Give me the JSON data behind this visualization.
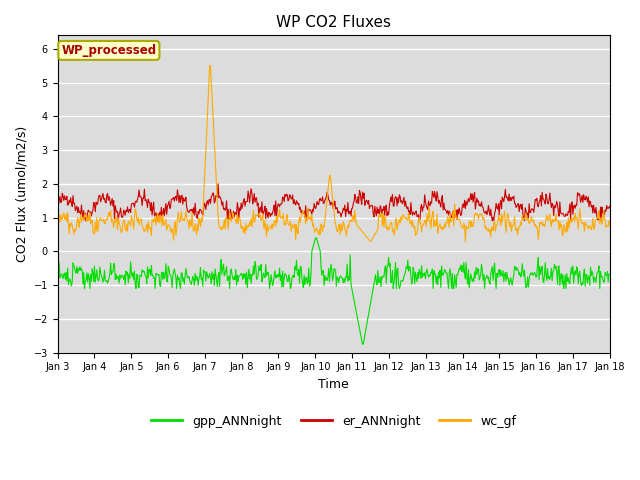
{
  "title": "WP CO2 Fluxes",
  "xlabel": "Time",
  "ylabel": "CO2 Flux (umol/m2/s)",
  "ylim": [
    -3.0,
    6.4
  ],
  "yticks": [
    -3.0,
    -2.0,
    -1.0,
    0.0,
    1.0,
    2.0,
    3.0,
    4.0,
    5.0,
    6.0
  ],
  "x_start_day": 3,
  "x_end_day": 18,
  "xtick_days": [
    3,
    4,
    5,
    6,
    7,
    8,
    9,
    10,
    11,
    12,
    13,
    14,
    15,
    16,
    17,
    18
  ],
  "xtick_labels": [
    "Jan 3",
    "Jan 4",
    "Jan 5",
    "Jan 6",
    "Jan 7",
    "Jan 8",
    "Jan 9",
    "Jan 10",
    "Jan 11",
    "Jan 12",
    "Jan 13",
    "Jan 14",
    "Jan 15",
    "Jan 16",
    "Jan 17",
    "Jan 18"
  ],
  "gpp_color": "#00dd00",
  "er_color": "#cc0000",
  "wc_color": "#ffaa00",
  "annotation_text": "WP_processed",
  "annotation_color": "#aa0000",
  "annotation_bg": "#ffffcc",
  "annotation_edge": "#aaaa00",
  "plot_bg": "#dcdcdc",
  "grid_color": "white",
  "legend_labels": [
    "gpp_ANNnight",
    "er_ANNnight",
    "wc_gf"
  ],
  "legend_colors": [
    "#00dd00",
    "#cc0000",
    "#ffaa00"
  ],
  "n_points": 720,
  "seed": 42
}
